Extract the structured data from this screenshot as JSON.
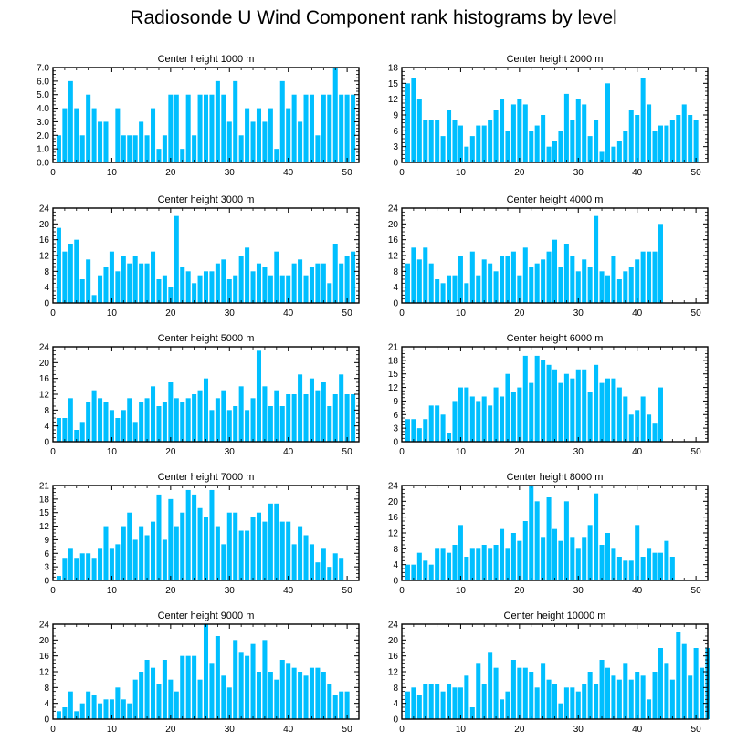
{
  "title": "Radiosonde U Wind Component rank histograms by level",
  "bar_color": "#00bfff",
  "chart_data": [
    {
      "type": "bar",
      "title": "Center height 1000 m",
      "ylim": [
        0,
        7
      ],
      "yticks": [
        "0.0",
        "1.0",
        "2.0",
        "3.0",
        "4.0",
        "5.0",
        "6.0",
        "7.0"
      ],
      "xlim": [
        0,
        52
      ],
      "xticks": [
        "0",
        "10",
        "20",
        "30",
        "40",
        "50"
      ],
      "values": [
        2,
        4,
        6,
        4,
        2,
        5,
        4,
        3,
        3,
        0,
        4,
        2,
        2,
        2,
        3,
        2,
        4,
        1,
        2,
        5,
        5,
        1,
        5,
        2,
        5,
        5,
        5,
        6,
        5,
        3,
        6,
        2,
        4,
        3,
        4,
        3,
        4,
        1,
        6,
        4,
        5,
        3,
        5,
        5,
        2,
        5,
        5,
        7,
        5,
        5,
        5
      ]
    },
    {
      "type": "bar",
      "title": "Center height 2000 m",
      "ylim": [
        0,
        18
      ],
      "yticks": [
        "0",
        "3",
        "6",
        "9",
        "12",
        "15",
        "18"
      ],
      "xlim": [
        0,
        52
      ],
      "xticks": [
        "0",
        "10",
        "20",
        "30",
        "40",
        "50"
      ],
      "values": [
        15,
        16,
        12,
        8,
        8,
        8,
        5,
        10,
        8,
        7,
        3,
        5,
        7,
        7,
        8,
        10,
        12,
        6,
        11,
        12,
        11,
        6,
        7,
        9,
        3,
        4,
        6,
        13,
        8,
        12,
        11,
        5,
        8,
        2,
        15,
        3,
        4,
        6,
        10,
        9,
        16,
        11,
        6,
        7,
        7,
        8,
        9,
        11,
        9,
        8,
        0
      ]
    },
    {
      "type": "bar",
      "title": "Center height 3000 m",
      "ylim": [
        0,
        24
      ],
      "yticks": [
        "0",
        "4",
        "8",
        "12",
        "16",
        "20",
        "24"
      ],
      "xlim": [
        0,
        52
      ],
      "xticks": [
        "0",
        "10",
        "20",
        "30",
        "40",
        "50"
      ],
      "values": [
        19,
        13,
        15,
        16,
        6,
        11,
        2,
        7,
        9,
        13,
        8,
        12,
        10,
        12,
        10,
        10,
        13,
        6,
        7,
        4,
        22,
        9,
        8,
        5,
        7,
        8,
        8,
        10,
        11,
        6,
        7,
        12,
        14,
        8,
        10,
        9,
        7,
        13,
        7,
        7,
        10,
        11,
        7,
        9,
        10,
        10,
        5,
        15,
        10,
        12,
        13
      ]
    },
    {
      "type": "bar",
      "title": "Center height 4000 m",
      "ylim": [
        0,
        24
      ],
      "yticks": [
        "0",
        "4",
        "8",
        "12",
        "16",
        "20",
        "24"
      ],
      "xlim": [
        0,
        52
      ],
      "xticks": [
        "0",
        "10",
        "20",
        "30",
        "40",
        "50"
      ],
      "values": [
        10,
        14,
        11,
        14,
        10,
        6,
        5,
        7,
        7,
        12,
        5,
        13,
        7,
        11,
        10,
        8,
        12,
        12,
        13,
        7,
        14,
        9,
        10,
        11,
        13,
        16,
        9,
        15,
        12,
        8,
        11,
        9,
        22,
        8,
        7,
        12,
        6,
        8,
        9,
        11,
        13,
        13,
        13,
        20
      ]
    },
    {
      "type": "bar",
      "title": "Center height 5000 m",
      "ylim": [
        0,
        24
      ],
      "yticks": [
        "0",
        "4",
        "8",
        "12",
        "16",
        "20",
        "24"
      ],
      "xlim": [
        0,
        52
      ],
      "xticks": [
        "0",
        "10",
        "20",
        "30",
        "40",
        "50"
      ],
      "values": [
        6,
        6,
        11,
        3,
        5,
        10,
        13,
        11,
        10,
        8,
        6,
        8,
        11,
        5,
        10,
        11,
        14,
        9,
        10,
        15,
        11,
        10,
        11,
        12,
        13,
        16,
        8,
        11,
        13,
        8,
        9,
        14,
        8,
        11,
        23,
        14,
        9,
        13,
        9,
        12,
        12,
        17,
        12,
        16,
        13,
        15,
        9,
        12,
        17,
        12,
        12
      ]
    },
    {
      "type": "bar",
      "title": "Center height 6000 m",
      "ylim": [
        0,
        21
      ],
      "yticks": [
        "0",
        "3",
        "6",
        "9",
        "12",
        "15",
        "18",
        "21"
      ],
      "xlim": [
        0,
        52
      ],
      "xticks": [
        "0",
        "10",
        "20",
        "30",
        "40",
        "50"
      ],
      "values": [
        5,
        5,
        3,
        5,
        8,
        8,
        6,
        2,
        9,
        12,
        12,
        10,
        9,
        10,
        8,
        12,
        10,
        15,
        11,
        12,
        19,
        13,
        19,
        18,
        17,
        16,
        13,
        15,
        14,
        16,
        16,
        11,
        17,
        13,
        14,
        14,
        12,
        10,
        6,
        7,
        10,
        6,
        4,
        12
      ]
    },
    {
      "type": "bar",
      "title": "Center height 7000 m",
      "ylim": [
        0,
        21
      ],
      "yticks": [
        "0",
        "3",
        "6",
        "9",
        "12",
        "15",
        "18",
        "21"
      ],
      "xlim": [
        0,
        52
      ],
      "xticks": [
        "0",
        "10",
        "20",
        "30",
        "40",
        "50"
      ],
      "values": [
        1,
        5,
        7,
        5,
        6,
        6,
        5,
        7,
        12,
        7,
        8,
        12,
        15,
        9,
        12,
        10,
        13,
        19,
        9,
        18,
        12,
        15,
        20,
        19,
        16,
        14,
        20,
        12,
        8,
        15,
        15,
        11,
        11,
        14,
        15,
        13,
        17,
        17,
        13,
        13,
        8,
        12,
        10,
        8,
        4,
        7,
        3,
        6,
        5
      ]
    },
    {
      "type": "bar",
      "title": "Center height 8000 m",
      "ylim": [
        0,
        24
      ],
      "yticks": [
        "0",
        "4",
        "8",
        "12",
        "16",
        "20",
        "24"
      ],
      "xlim": [
        0,
        52
      ],
      "xticks": [
        "0",
        "10",
        "20",
        "30",
        "40",
        "50"
      ],
      "values": [
        4,
        4,
        7,
        5,
        4,
        8,
        8,
        7,
        9,
        14,
        6,
        8,
        8,
        9,
        8,
        9,
        13,
        8,
        12,
        10,
        15,
        24,
        20,
        11,
        21,
        13,
        10,
        20,
        11,
        8,
        11,
        14,
        22,
        9,
        12,
        8,
        6,
        5,
        5,
        14,
        6,
        8,
        7,
        7,
        10,
        6
      ]
    },
    {
      "type": "bar",
      "title": "Center height 9000 m",
      "ylim": [
        0,
        24
      ],
      "yticks": [
        "0",
        "4",
        "8",
        "12",
        "16",
        "20",
        "24"
      ],
      "xlim": [
        0,
        52
      ],
      "xticks": [
        "0",
        "10",
        "20",
        "30",
        "40",
        "50"
      ],
      "values": [
        2,
        3,
        7,
        2,
        4,
        7,
        6,
        4,
        5,
        5,
        8,
        5,
        4,
        10,
        12,
        15,
        13,
        9,
        15,
        10,
        7,
        16,
        16,
        16,
        10,
        24,
        14,
        21,
        11,
        8,
        20,
        17,
        16,
        19,
        12,
        20,
        12,
        10,
        15,
        14,
        13,
        12,
        11,
        13,
        13,
        12,
        9,
        6,
        7,
        7
      ]
    },
    {
      "type": "bar",
      "title": "Center height 10000 m",
      "ylim": [
        0,
        24
      ],
      "yticks": [
        "0",
        "4",
        "8",
        "12",
        "16",
        "20",
        "24"
      ],
      "xlim": [
        0,
        52
      ],
      "xticks": [
        "0",
        "10",
        "20",
        "30",
        "40",
        "50"
      ],
      "values": [
        7,
        8,
        6,
        9,
        9,
        9,
        7,
        9,
        8,
        8,
        11,
        3,
        14,
        9,
        17,
        13,
        5,
        7,
        15,
        13,
        13,
        12,
        8,
        14,
        10,
        9,
        4,
        8,
        8,
        7,
        9,
        12,
        9,
        15,
        13,
        11,
        10,
        14,
        10,
        12,
        11,
        5,
        12,
        18,
        14,
        10,
        22,
        19,
        11,
        18,
        13,
        18
      ]
    }
  ]
}
